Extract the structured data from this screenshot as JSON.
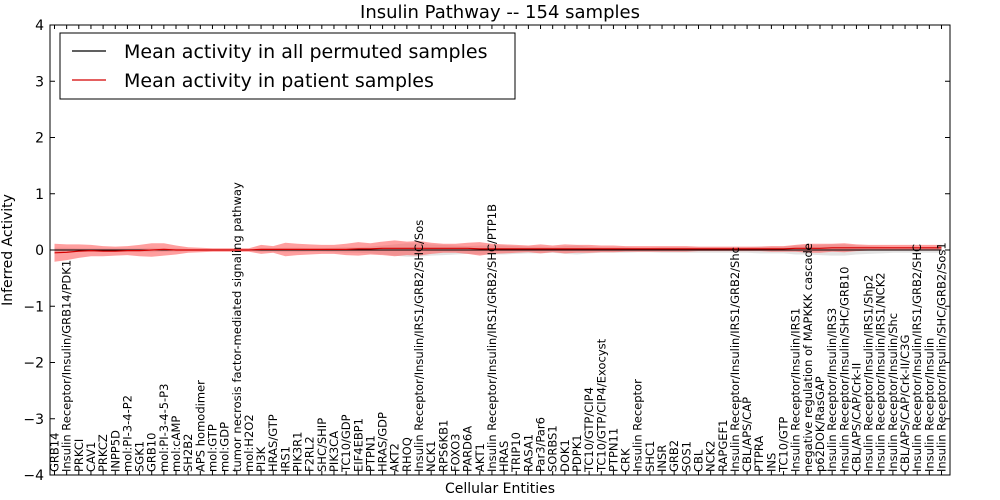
{
  "chart_data": {
    "type": "line",
    "title": "Insulin Pathway -- 154 samples",
    "xlabel": "Cellular Entities",
    "ylabel": "Inferred Activity",
    "ylim": [
      -4,
      4
    ],
    "yticks": [
      -4,
      -3,
      -2,
      -1,
      0,
      1,
      2,
      3,
      4
    ],
    "legend_position": "top-left",
    "categories": [
      "GRB14",
      "Insulin Receptor/Insulin/GRB14/PDK1",
      "PRKCI",
      "CAV1",
      "PRKCZ",
      "INPP5D",
      "mol:PI-3-4-P2",
      "SGK1",
      "GRB10",
      "mol:PI-3-4-5-P3",
      "mol:cAMP",
      "SH2B2",
      "APS homodimer",
      "mol:GTP",
      "mol:GDP",
      "tumor necrosis factor-mediated signaling pathway",
      "mol:H2O2",
      "PI3K",
      "HRAS/GTP",
      "IRS1",
      "PIK3R1",
      "F2RL2",
      "SHC/SHIP",
      "PIK3CA",
      "TC10/GDP",
      "EIF4EBP1",
      "PTPN1",
      "HRAS/GDP",
      "AKT2",
      "RHOQ",
      "Insulin Receptor/Insulin/IRS1/GRB2/SHC/Sos",
      "NCK1",
      "RPS6KB1",
      "FOXO3",
      "PARD6A",
      "AKT1",
      "Insulin Receptor/Insulin/IRS1/GRB2/SHC/PTP1B",
      "HRAS",
      "TRIP10",
      "RASA1",
      "Par3/Par6",
      "SORBS1",
      "DOK1",
      "PDPK1",
      "TC10/GTP/CIP4",
      "TC10/GTP/CIP4/Exocyst",
      "PTPN11",
      "CRK",
      "Insulin Receptor",
      "SHC1",
      "INSR",
      "GRB2",
      "SOS1",
      "CBL",
      "NCK2",
      "RAPGEF1",
      "Insulin Receptor/Insulin/IRS1/GRB2/Shc",
      "CBL/APS/CAP",
      "PTPRA",
      "INS",
      "TC10/GTP",
      "Insulin Receptor/Insulin/IRS1",
      "negative regulation of MAPKKK cascade",
      "p62DOK/RasGAP",
      "Insulin Receptor/Insulin/IRS3",
      "Insulin Receptor/Insulin/SHC/GRB10",
      "CBL/APS/CAP/Crk-II",
      "Insulin Receptor/Insulin/IRS1/Shp2",
      "Insulin Receptor/Insulin/IRS1/NCK2",
      "Insulin Receptor/Insulin/Shc",
      "CBL/APS/CAP/Crk-II/C3G",
      "Insulin Receptor/Insulin/IRS1/GRB2/SHC",
      "Insulin Receptor/Insulin",
      "Insulin Receptor/Insulin/SHC/GRB2/Sos1"
    ],
    "series": [
      {
        "name": "Mean activity in all permuted samples",
        "color": "#000000",
        "values": [
          0,
          0,
          0,
          0,
          0,
          0,
          0,
          0,
          0,
          0,
          0,
          0,
          0,
          0,
          0,
          0,
          0,
          0,
          0,
          0,
          0,
          0,
          0,
          0,
          0,
          0,
          0,
          0,
          0,
          0,
          0,
          0,
          0,
          0,
          0,
          0,
          0,
          0,
          0,
          0,
          0,
          0,
          0,
          0,
          0,
          0,
          0,
          0,
          0,
          0,
          0,
          0,
          0,
          0,
          0,
          0,
          0,
          0,
          0,
          0,
          0,
          0,
          0,
          0,
          0,
          0,
          0,
          0,
          0,
          0,
          0,
          0,
          0,
          0
        ],
        "band": [
          0.04,
          0.04,
          0.03,
          0.03,
          0.03,
          0.03,
          0.03,
          0.03,
          0.04,
          0.03,
          0.03,
          0.02,
          0.02,
          0.02,
          0.02,
          0.02,
          0.02,
          0.03,
          0.03,
          0.04,
          0.04,
          0.03,
          0.03,
          0.04,
          0.05,
          0.05,
          0.06,
          0.08,
          0.1,
          0.12,
          0.12,
          0.1,
          0.09,
          0.08,
          0.07,
          0.08,
          0.08,
          0.08,
          0.07,
          0.06,
          0.06,
          0.05,
          0.07,
          0.08,
          0.06,
          0.05,
          0.05,
          0.05,
          0.04,
          0.04,
          0.05,
          0.05,
          0.05,
          0.05,
          0.05,
          0.05,
          0.05,
          0.05,
          0.06,
          0.06,
          0.06,
          0.08,
          0.08,
          0.09,
          0.1,
          0.1,
          0.08,
          0.07,
          0.06,
          0.05,
          0.05,
          0.05,
          0.05,
          0.05
        ],
        "fill": "#b0b0b0"
      },
      {
        "name": "Mean activity in patient samples",
        "color": "#d40000",
        "values": [
          -0.05,
          -0.04,
          -0.02,
          -0.01,
          -0.02,
          -0.02,
          -0.01,
          -0.01,
          0.0,
          0.01,
          0.0,
          0.0,
          0.0,
          0.0,
          0.0,
          0.0,
          0.0,
          0.01,
          0.01,
          0.01,
          0.01,
          0.01,
          0.01,
          0.01,
          0.01,
          0.02,
          0.02,
          0.03,
          0.03,
          0.03,
          0.03,
          0.03,
          0.03,
          0.03,
          0.03,
          0.02,
          0.02,
          0.02,
          0.02,
          0.02,
          0.02,
          0.02,
          0.02,
          0.02,
          0.02,
          0.02,
          0.02,
          0.02,
          0.02,
          0.02,
          0.02,
          0.02,
          0.02,
          0.02,
          0.02,
          0.02,
          0.02,
          0.02,
          0.02,
          0.02,
          0.02,
          0.03,
          0.03,
          0.03,
          0.04,
          0.04,
          0.04,
          0.04,
          0.04,
          0.04,
          0.04,
          0.04,
          0.04,
          0.04
        ],
        "band": [
          0.16,
          0.14,
          0.12,
          0.1,
          0.09,
          0.08,
          0.08,
          0.1,
          0.12,
          0.11,
          0.08,
          0.05,
          0.04,
          0.03,
          0.03,
          0.03,
          0.03,
          0.08,
          0.06,
          0.12,
          0.1,
          0.09,
          0.08,
          0.08,
          0.1,
          0.12,
          0.1,
          0.12,
          0.14,
          0.12,
          0.13,
          0.1,
          0.08,
          0.08,
          0.1,
          0.12,
          0.09,
          0.08,
          0.07,
          0.06,
          0.08,
          0.06,
          0.08,
          0.07,
          0.07,
          0.06,
          0.06,
          0.05,
          0.05,
          0.05,
          0.05,
          0.05,
          0.05,
          0.04,
          0.04,
          0.04,
          0.04,
          0.04,
          0.04,
          0.05,
          0.05,
          0.06,
          0.08,
          0.08,
          0.07,
          0.08,
          0.06,
          0.05,
          0.05,
          0.05,
          0.05,
          0.05,
          0.05,
          0.05
        ],
        "fill": "#ff5050"
      }
    ]
  }
}
